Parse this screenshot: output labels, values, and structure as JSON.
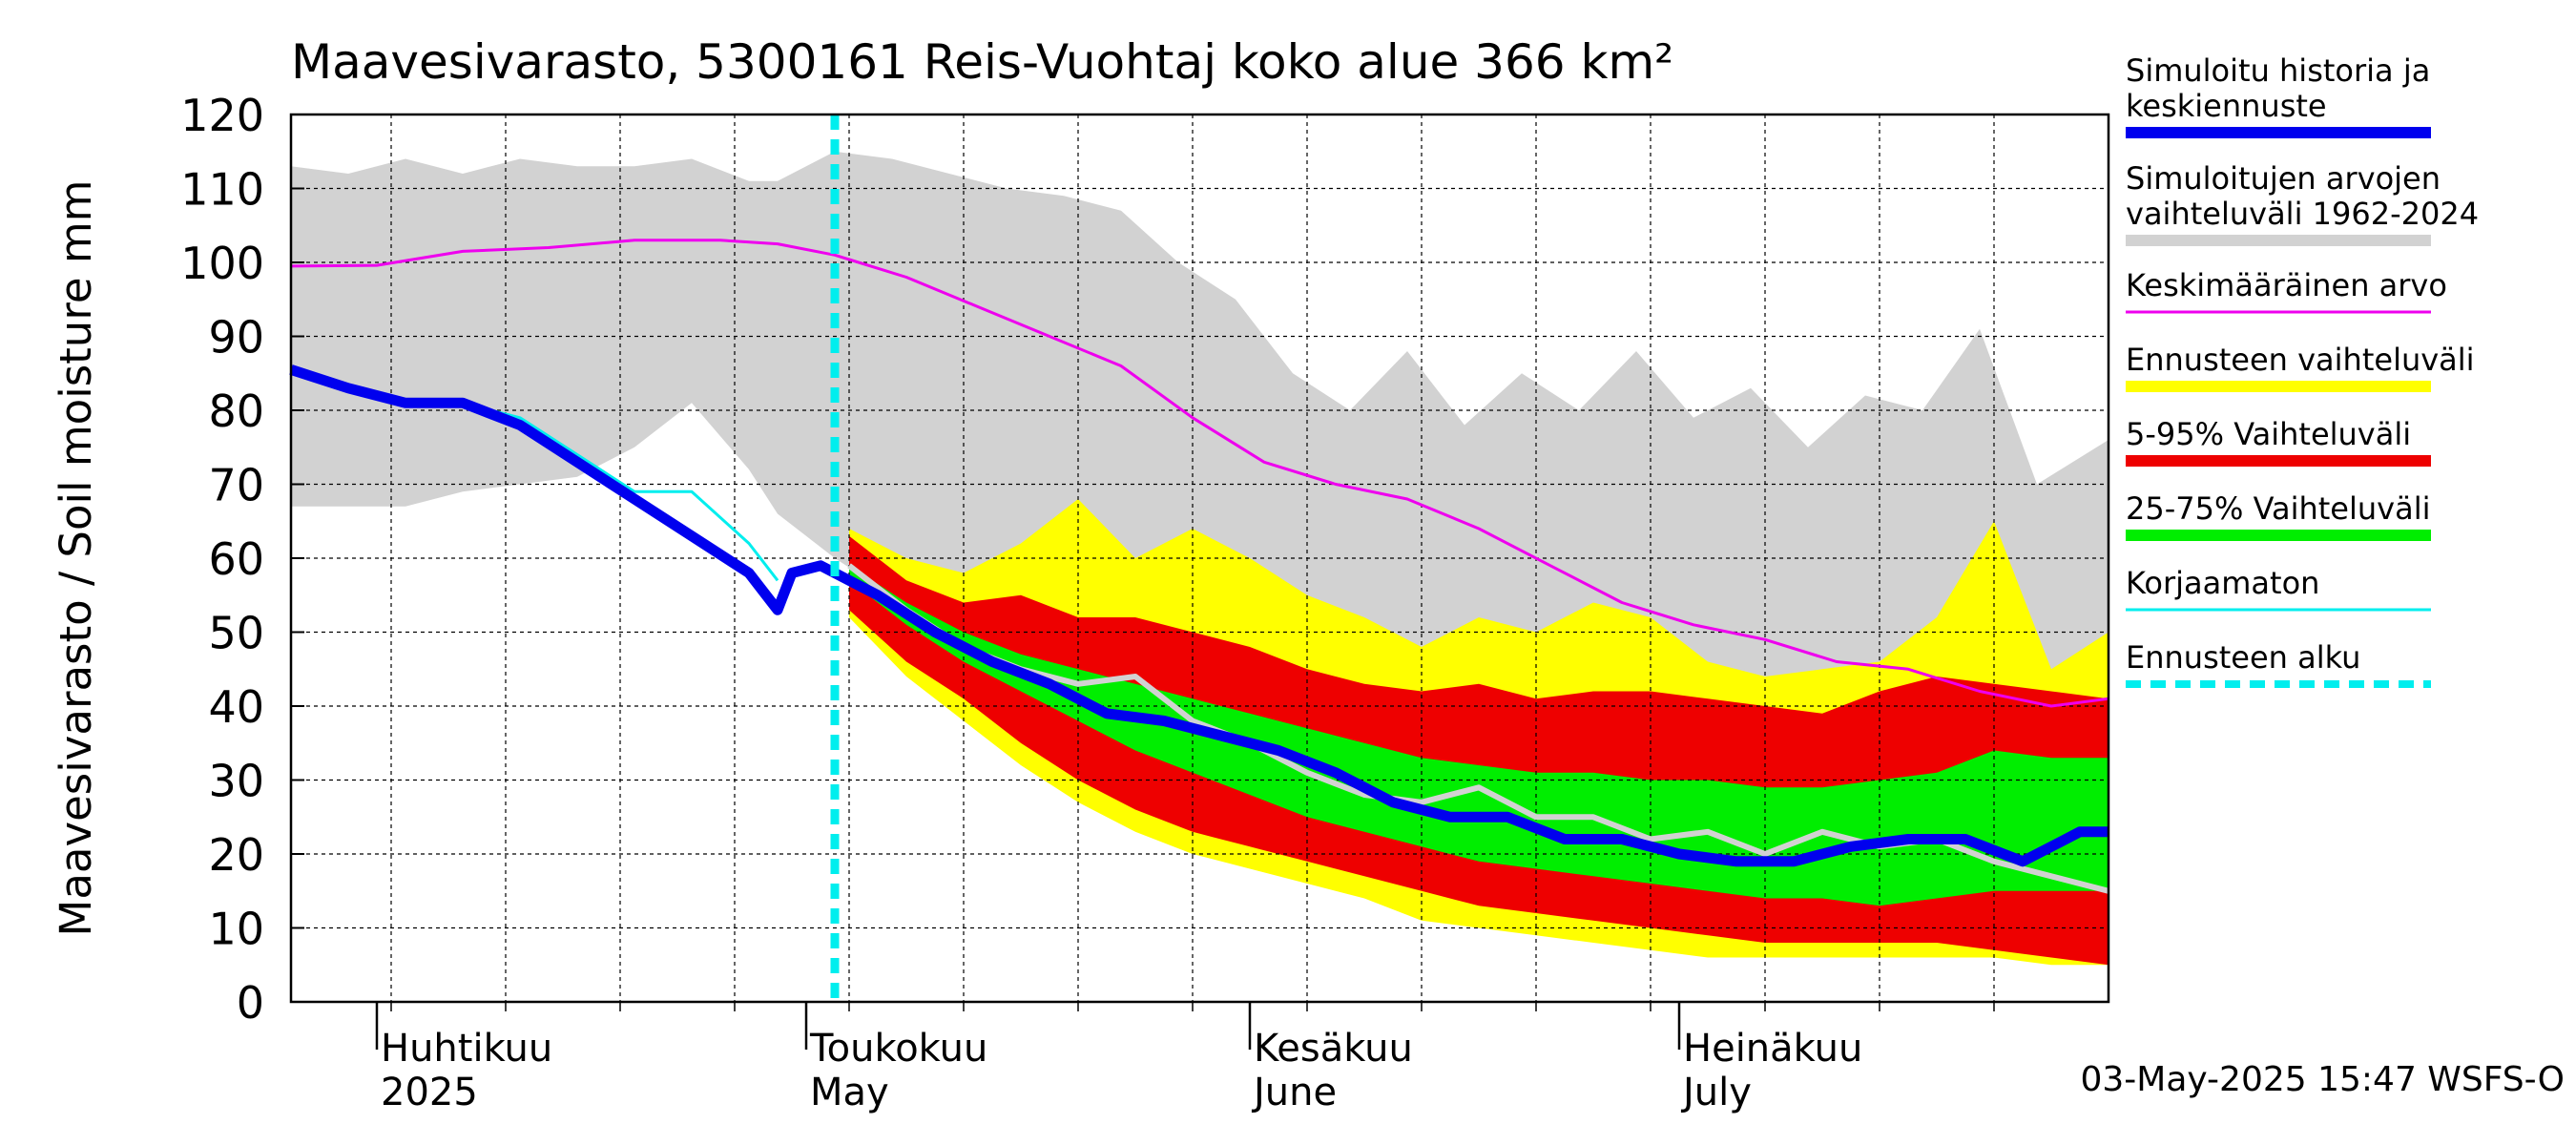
{
  "chart_data": {
    "type": "area",
    "title": "Maavesivarasto, 5300161 Reis-Vuohtaj koko alue 366 km²",
    "ylabel": "Maavesivarasto / Soil moisture   mm",
    "ylim": [
      0,
      120
    ],
    "yticks": [
      0,
      10,
      20,
      30,
      40,
      50,
      60,
      70,
      80,
      90,
      100,
      110,
      120
    ],
    "x_start": "2025-03-26",
    "x_end": "2025-07-31",
    "forecast_start": "2025-05-03",
    "grid": true,
    "legend_position": "right",
    "footer": "03-May-2025 15:47 WSFS-O",
    "months": [
      {
        "fi": "Huhtikuu",
        "en": "2025",
        "start": "2025-04-01"
      },
      {
        "fi": "Toukokuu",
        "en": "May",
        "start": "2025-05-01"
      },
      {
        "fi": "Kesäkuu",
        "en": "June",
        "start": "2025-06-01"
      },
      {
        "fi": "Heinäkuu",
        "en": "July",
        "start": "2025-07-01"
      }
    ],
    "legend": [
      {
        "label": "Simuloitu historia ja keskiennuste",
        "color": "#0000ee",
        "style": "thick"
      },
      {
        "label": "Simuloitujen arvojen vaihteluväli 1962-2024",
        "color": "#d2d2d2",
        "style": "thick"
      },
      {
        "label": "Keskimääräinen arvo",
        "color": "#ee00ee",
        "style": "thin"
      },
      {
        "label": "Ennusteen vaihteluväli",
        "color": "#ffff00",
        "style": "thick"
      },
      {
        "label": "5-95% Vaihteluväli",
        "color": "#ee0000",
        "style": "thick"
      },
      {
        "label": "25-75% Vaihteluväli",
        "color": "#00ee00",
        "style": "thick"
      },
      {
        "label": "Korjaamaton",
        "color": "#00eeee",
        "style": "thin"
      },
      {
        "label": "Ennusteen alku",
        "color": "#00eeee",
        "style": "dashed"
      }
    ],
    "series": {
      "hist_range": {
        "x": [
          "2025-03-26",
          "2025-03-30",
          "2025-04-03",
          "2025-04-07",
          "2025-04-11",
          "2025-04-15",
          "2025-04-19",
          "2025-04-23",
          "2025-04-27",
          "2025-04-29",
          "2025-05-03",
          "2025-05-07",
          "2025-05-11",
          "2025-05-15",
          "2025-05-19",
          "2025-05-23",
          "2025-05-27",
          "2025-05-31",
          "2025-06-04",
          "2025-06-08",
          "2025-06-12",
          "2025-06-16",
          "2025-06-20",
          "2025-06-24",
          "2025-06-28",
          "2025-07-02",
          "2025-07-06",
          "2025-07-10",
          "2025-07-14",
          "2025-07-18",
          "2025-07-22",
          "2025-07-26",
          "2025-07-31"
        ],
        "upper": [
          113,
          112,
          114,
          112,
          114,
          113,
          113,
          114,
          111,
          111,
          115,
          114,
          112,
          110,
          109,
          107,
          100,
          95,
          85,
          80,
          88,
          78,
          85,
          80,
          88,
          79,
          83,
          75,
          82,
          80,
          91,
          70,
          76
        ],
        "lower": [
          67,
          67,
          67,
          69,
          70,
          71,
          75,
          81,
          72,
          66,
          60,
          55,
          50,
          46,
          44,
          43,
          43,
          43,
          43,
          42,
          42,
          42,
          42,
          42,
          42,
          41,
          41,
          41,
          41,
          41,
          41,
          40,
          40
        ]
      },
      "mean": {
        "x": [
          "2025-03-26",
          "2025-04-01",
          "2025-04-07",
          "2025-04-13",
          "2025-04-19",
          "2025-04-25",
          "2025-04-29",
          "2025-05-03",
          "2025-05-08",
          "2025-05-13",
          "2025-05-18",
          "2025-05-23",
          "2025-05-28",
          "2025-06-02",
          "2025-06-07",
          "2025-06-12",
          "2025-06-17",
          "2025-06-22",
          "2025-06-27",
          "2025-07-02",
          "2025-07-07",
          "2025-07-12",
          "2025-07-17",
          "2025-07-22",
          "2025-07-27",
          "2025-07-31"
        ],
        "y": [
          99.5,
          99.6,
          101.5,
          102,
          103,
          103,
          102.5,
          101,
          98,
          94,
          90,
          86,
          79,
          73,
          70,
          68,
          64,
          59,
          54,
          51,
          49,
          46,
          45,
          42,
          40,
          41
        ]
      },
      "forecast_range": {
        "x": [
          "2025-05-04",
          "2025-05-08",
          "2025-05-12",
          "2025-05-16",
          "2025-05-20",
          "2025-05-24",
          "2025-05-28",
          "2025-06-01",
          "2025-06-05",
          "2025-06-09",
          "2025-06-13",
          "2025-06-17",
          "2025-06-21",
          "2025-06-25",
          "2025-06-29",
          "2025-07-03",
          "2025-07-07",
          "2025-07-11",
          "2025-07-15",
          "2025-07-19",
          "2025-07-23",
          "2025-07-27",
          "2025-07-31"
        ],
        "upper": [
          64,
          60,
          58,
          62,
          68,
          60,
          64,
          60,
          55,
          52,
          48,
          52,
          50,
          54,
          52,
          46,
          44,
          45,
          46,
          52,
          65,
          45,
          50
        ],
        "lower": [
          52,
          44,
          38,
          32,
          27,
          23,
          20,
          18,
          16,
          14,
          11,
          10,
          9,
          8,
          7,
          6,
          6,
          6,
          6,
          6,
          6,
          5,
          5
        ]
      },
      "p5_95": {
        "x": [
          "2025-05-04",
          "2025-05-08",
          "2025-05-12",
          "2025-05-16",
          "2025-05-20",
          "2025-05-24",
          "2025-05-28",
          "2025-06-01",
          "2025-06-05",
          "2025-06-09",
          "2025-06-13",
          "2025-06-17",
          "2025-06-21",
          "2025-06-25",
          "2025-06-29",
          "2025-07-03",
          "2025-07-07",
          "2025-07-11",
          "2025-07-15",
          "2025-07-19",
          "2025-07-23",
          "2025-07-27",
          "2025-07-31"
        ],
        "upper": [
          63,
          57,
          54,
          55,
          52,
          52,
          50,
          48,
          45,
          43,
          42,
          43,
          41,
          42,
          42,
          41,
          40,
          39,
          42,
          44,
          43,
          42,
          41
        ],
        "lower": [
          53,
          46,
          41,
          35,
          30,
          26,
          23,
          21,
          19,
          17,
          15,
          13,
          12,
          11,
          10,
          9,
          8,
          8,
          8,
          8,
          7,
          6,
          5
        ]
      },
      "p25_75": {
        "x": [
          "2025-05-04",
          "2025-05-08",
          "2025-05-12",
          "2025-05-16",
          "2025-05-20",
          "2025-05-24",
          "2025-05-28",
          "2025-06-01",
          "2025-06-05",
          "2025-06-09",
          "2025-06-13",
          "2025-06-17",
          "2025-06-21",
          "2025-06-25",
          "2025-06-29",
          "2025-07-03",
          "2025-07-07",
          "2025-07-11",
          "2025-07-15",
          "2025-07-19",
          "2025-07-23",
          "2025-07-27",
          "2025-07-31"
        ],
        "upper": [
          59,
          54,
          50,
          47,
          45,
          43,
          41,
          39,
          37,
          35,
          33,
          32,
          31,
          31,
          30,
          30,
          29,
          29,
          30,
          31,
          34,
          33,
          33
        ],
        "lower": [
          57,
          51,
          46,
          42,
          38,
          34,
          31,
          28,
          25,
          23,
          21,
          19,
          18,
          17,
          16,
          15,
          14,
          14,
          13,
          14,
          15,
          15,
          15
        ]
      },
      "median_grey": {
        "x": [
          "2025-05-04",
          "2025-05-08",
          "2025-05-12",
          "2025-05-16",
          "2025-05-20",
          "2025-05-24",
          "2025-05-28",
          "2025-06-01",
          "2025-06-05",
          "2025-06-09",
          "2025-06-13",
          "2025-06-17",
          "2025-06-21",
          "2025-06-25",
          "2025-06-29",
          "2025-07-03",
          "2025-07-07",
          "2025-07-11",
          "2025-07-15",
          "2025-07-19",
          "2025-07-23",
          "2025-07-27",
          "2025-07-31"
        ],
        "y": [
          59,
          53,
          48,
          45,
          43,
          44,
          38,
          35,
          31,
          28,
          27,
          29,
          25,
          25,
          22,
          23,
          20,
          23,
          21,
          22,
          19,
          17,
          15
        ]
      },
      "sim": {
        "x": [
          "2025-03-26",
          "2025-03-30",
          "2025-04-03",
          "2025-04-07",
          "2025-04-11",
          "2025-04-15",
          "2025-04-19",
          "2025-04-23",
          "2025-04-27",
          "2025-04-29",
          "2025-04-30",
          "2025-05-02",
          "2025-05-06",
          "2025-05-10",
          "2025-05-14",
          "2025-05-18",
          "2025-05-22",
          "2025-05-26",
          "2025-05-30",
          "2025-06-03",
          "2025-06-07",
          "2025-06-11",
          "2025-06-15",
          "2025-06-19",
          "2025-06-23",
          "2025-06-27",
          "2025-07-01",
          "2025-07-05",
          "2025-07-09",
          "2025-07-13",
          "2025-07-17",
          "2025-07-21",
          "2025-07-25",
          "2025-07-29",
          "2025-07-31"
        ],
        "y": [
          85.5,
          83,
          81,
          81,
          78,
          73,
          68,
          63,
          58,
          53,
          58,
          59,
          55,
          50,
          46,
          43,
          39,
          38,
          36,
          34,
          31,
          27,
          25,
          25,
          22,
          22,
          20,
          19,
          19,
          21,
          22,
          22,
          19,
          23,
          23
        ]
      },
      "uncorrected": {
        "x": [
          "2025-03-26",
          "2025-03-30",
          "2025-04-03",
          "2025-04-07",
          "2025-04-11",
          "2025-04-15",
          "2025-04-19",
          "2025-04-23",
          "2025-04-27",
          "2025-04-29"
        ],
        "y": [
          85,
          83,
          81,
          81,
          79,
          74,
          69,
          69,
          62,
          57
        ]
      }
    }
  }
}
